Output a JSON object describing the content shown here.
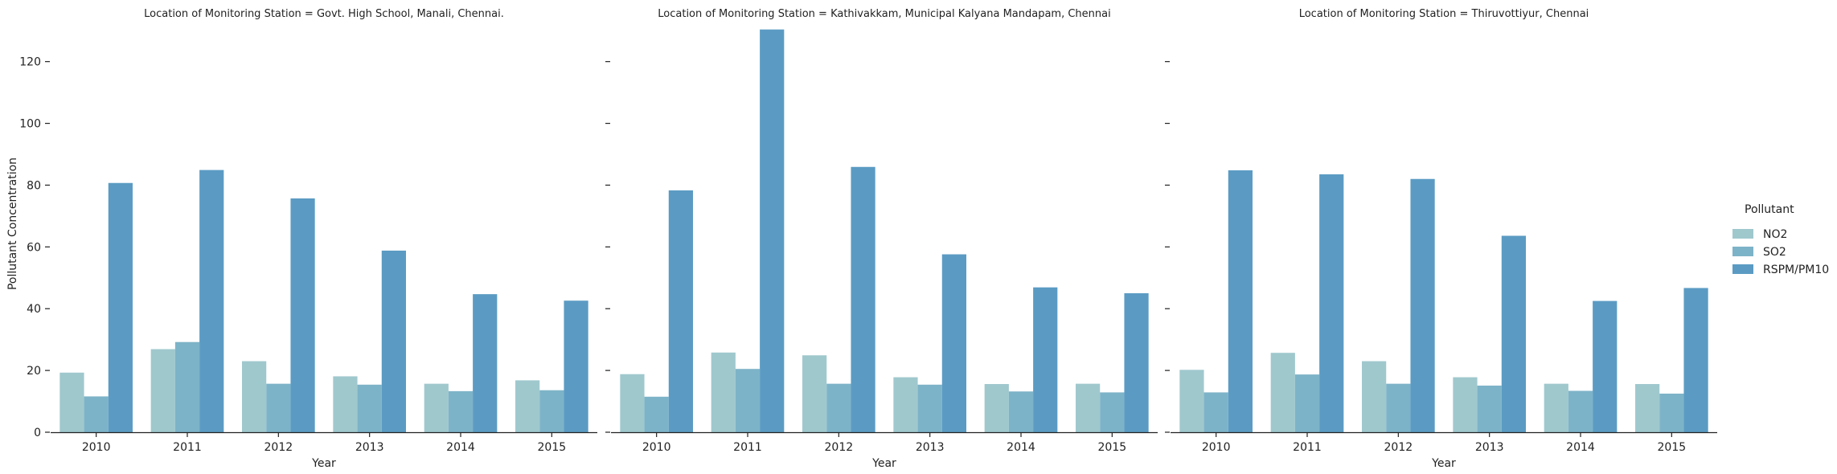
{
  "chart_data": {
    "type": "bar",
    "ylabel": "Pollutant Concentration",
    "xlabel": "Year",
    "ylim": [
      0,
      135
    ],
    "yticks": [
      0,
      20,
      40,
      60,
      80,
      100,
      120
    ],
    "categories": [
      "2010",
      "2011",
      "2012",
      "2013",
      "2014",
      "2015"
    ],
    "legend": {
      "title": "Pollutant",
      "position": "right",
      "items": [
        {
          "name": "NO2",
          "color": "#9fc8cd"
        },
        {
          "name": "SO2",
          "color": "#7db3c8"
        },
        {
          "name": "RSPM/PM10",
          "color": "#5b9bc3"
        }
      ]
    },
    "panels": [
      {
        "title": "Location of Monitoring Station = Govt. High School, Manali, Chennai.",
        "series": [
          {
            "name": "NO2",
            "values": [
              19.3,
              26.9,
              23.0,
              18.1,
              15.7,
              16.8
            ]
          },
          {
            "name": "SO2",
            "values": [
              11.6,
              29.2,
              15.7,
              15.4,
              13.3,
              13.6
            ]
          },
          {
            "name": "RSPM/PM10",
            "values": [
              80.7,
              84.9,
              75.7,
              58.8,
              44.7,
              42.6
            ]
          }
        ]
      },
      {
        "title": "Location of Monitoring Station = Kathivakkam, Municipal Kalyana Mandapam, Chennai",
        "series": [
          {
            "name": "NO2",
            "values": [
              18.8,
              25.8,
              24.9,
              17.8,
              15.6,
              15.7
            ]
          },
          {
            "name": "SO2",
            "values": [
              11.5,
              20.5,
              15.7,
              15.4,
              13.2,
              12.9
            ]
          },
          {
            "name": "RSPM/PM10",
            "values": [
              78.3,
              130.4,
              85.9,
              57.6,
              46.9,
              45.0
            ]
          }
        ]
      },
      {
        "title": "Location of Monitoring Station = Thiruvottiyur,  Chennai",
        "series": [
          {
            "name": "NO2",
            "values": [
              20.2,
              25.7,
              23.0,
              17.8,
              15.7,
              15.6
            ]
          },
          {
            "name": "SO2",
            "values": [
              12.9,
              18.7,
              15.7,
              15.1,
              13.4,
              12.5
            ]
          },
          {
            "name": "RSPM/PM10",
            "values": [
              84.8,
              83.5,
              82.0,
              63.6,
              42.5,
              46.7
            ]
          }
        ]
      }
    ]
  }
}
